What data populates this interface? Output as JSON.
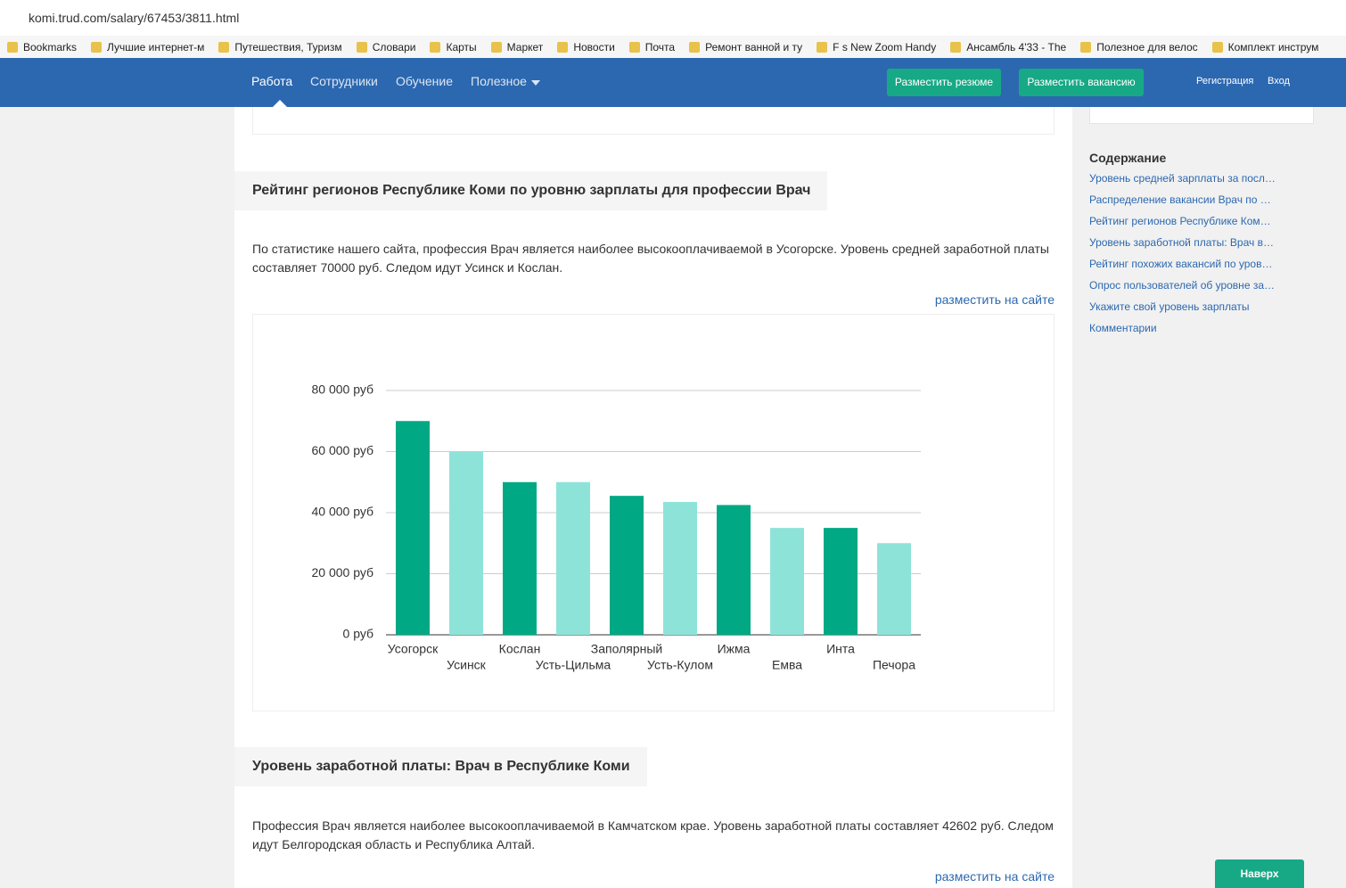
{
  "browser": {
    "url": "komi.trud.com/salary/67453/3811.html",
    "bookmarks": [
      "Bookmarks",
      "Лучшие интернет-м",
      "Путешествия, Туризм",
      "Словари",
      "Карты",
      "Маркет",
      "Новости",
      "Почта",
      "Ремонт ванной и ту",
      "F s New Zoom Handy",
      "Ансамбль 4'33 - The",
      "Полезное для велос",
      "Комплект инструм"
    ]
  },
  "nav": {
    "items": [
      "Работа",
      "Сотрудники",
      "Обучение",
      "Полезное"
    ],
    "buttons": [
      "Разместить резюме",
      "Разместить вакансию"
    ],
    "links": [
      "Регистрация",
      "Вход"
    ]
  },
  "section1": {
    "title": "Рейтинг регионов Республике Коми по уровню зарплаты для профессии Врач",
    "text": "По статистике нашего сайта, профессия Врач является наиболее высокооплачиваемой в Усогорске. Уровень средней заработной платы составляет 70000 руб. Следом идут Усинск и Кослан.",
    "link": "разместить на сайте"
  },
  "chart_data": {
    "type": "bar",
    "categories": [
      "Усогорск",
      "Усинск",
      "Кослан",
      "Усть-Цильма",
      "Заполярный",
      "Усть-Кулом",
      "Ижма",
      "Емва",
      "Инта",
      "Печора"
    ],
    "values": [
      70000,
      60000,
      50000,
      50000,
      45500,
      43500,
      42500,
      35000,
      35000,
      30000
    ],
    "colors": [
      "#00a884",
      "#8ee3d9",
      "#00a884",
      "#8ee3d9",
      "#00a884",
      "#8ee3d9",
      "#00a884",
      "#8ee3d9",
      "#00a884",
      "#8ee3d9"
    ],
    "ylim": [
      0,
      80000
    ],
    "yticks": [
      {
        "value": 0,
        "label": "0 руб"
      },
      {
        "value": 20000,
        "label": "20 000 руб"
      },
      {
        "value": 40000,
        "label": "40 000 руб"
      },
      {
        "value": 60000,
        "label": "60 000 руб"
      },
      {
        "value": 80000,
        "label": "80 000 руб"
      }
    ],
    "grid": true
  },
  "section2": {
    "title": "Уровень заработной платы: Врач в Республике Коми",
    "text": "Профессия Врач является наиболее высокооплачиваемой в Камчатском крае. Уровень заработной платы составляет 42602 руб. Следом идут Белгородская область и Республика Алтай.",
    "link": "разместить на сайте"
  },
  "sidebar": {
    "title": "Содержание",
    "links": [
      "Уровень средней зарплаты за посл…",
      "Распределение вакансии Врач по …",
      "Рейтинг регионов Республике Ком…",
      "Уровень заработной платы: Врач в…",
      "Рейтинг похожих вакансий по уров…",
      "Опрос пользователей об уровне за…",
      "Укажите свой уровень зарплаты",
      "Комментарии"
    ]
  },
  "scroll_top": "Наверх"
}
